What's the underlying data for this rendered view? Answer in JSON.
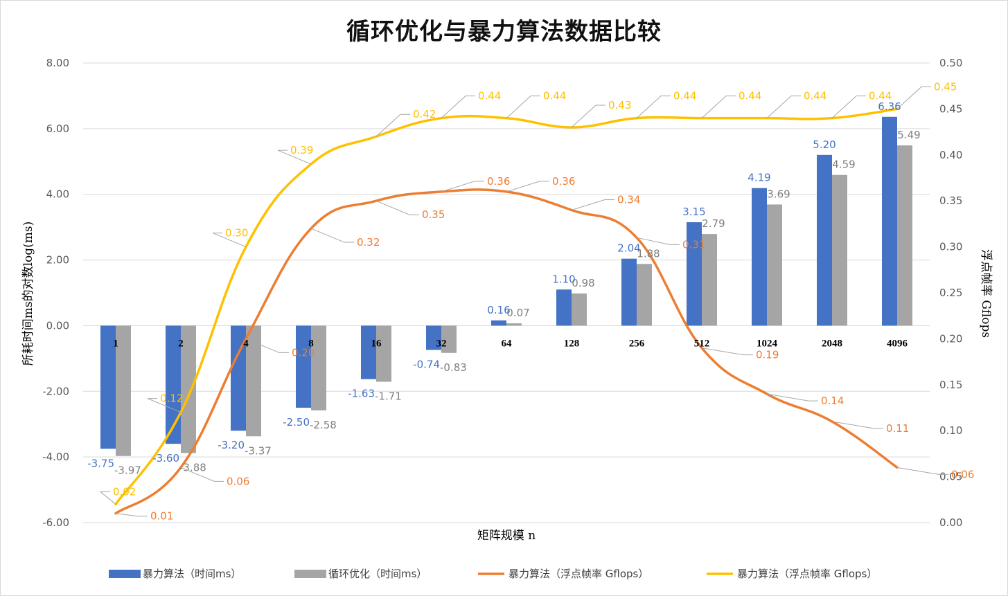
{
  "chart_data": {
    "type": "bar",
    "title": "循环优化与暴力算法数据比较",
    "xlabel": "矩阵规模 n",
    "ylabel": "所耗时间ms的对数log(ms)",
    "y2label": "浮点帧率 Gflops",
    "ylim": [
      -6,
      8
    ],
    "y2lim": [
      0,
      0.5
    ],
    "yticks": [
      "-6.00",
      "-4.00",
      "-2.00",
      "0.00",
      "2.00",
      "4.00",
      "6.00",
      "8.00"
    ],
    "y2ticks": [
      "0.00",
      "0.05",
      "0.10",
      "0.15",
      "0.20",
      "0.25",
      "0.30",
      "0.35",
      "0.40",
      "0.45",
      "0.50"
    ],
    "categories": [
      "1",
      "2",
      "4",
      "8",
      "16",
      "32",
      "64",
      "128",
      "256",
      "512",
      "1024",
      "2048",
      "4096"
    ],
    "series": [
      {
        "name": "暴力算法（时间ms）",
        "kind": "bar",
        "axis": "left",
        "color": "#4472c4",
        "values": [
          -3.75,
          -3.6,
          -3.2,
          -2.5,
          -1.63,
          -0.74,
          0.16,
          1.1,
          2.04,
          3.15,
          4.19,
          5.2,
          6.36
        ],
        "labels": [
          "-3.75",
          "-3.60",
          "-3.20",
          "-2.50",
          "-1.63",
          "-0.74",
          "0.16",
          "1.10",
          "2.04",
          "3.15",
          "4.19",
          "5.20",
          "6.36"
        ]
      },
      {
        "name": "循环优化（时间ms）",
        "kind": "bar",
        "axis": "left",
        "color": "#a5a5a5",
        "values": [
          -3.97,
          -3.88,
          -3.37,
          -2.58,
          -1.71,
          -0.83,
          0.07,
          0.98,
          1.88,
          2.79,
          3.69,
          4.59,
          5.49
        ],
        "labels": [
          "-3.97",
          "-3.88",
          "-3.37",
          "-2.58",
          "-1.71",
          "-0.83",
          "0.07",
          "0.98",
          "1.88",
          "2.79",
          "3.69",
          "4.59",
          "5.49"
        ]
      },
      {
        "name": "暴力算法（浮点帧率 Gflops）",
        "kind": "line",
        "axis": "right",
        "color": "#ed7d31",
        "values": [
          0.01,
          0.06,
          0.2,
          0.32,
          0.35,
          0.36,
          0.36,
          0.34,
          0.31,
          0.19,
          0.14,
          0.11,
          0.06
        ],
        "labels": [
          "0.01",
          "0.06",
          "0.20",
          "0.32",
          "0.35",
          "0.36",
          "0.36",
          "0.34",
          "0.31",
          "0.19",
          "0.14",
          "0.11",
          "0.06"
        ]
      },
      {
        "name": "暴力算法（浮点帧率 Gflops）",
        "kind": "line",
        "axis": "right",
        "color": "#ffc000",
        "values": [
          0.02,
          0.12,
          0.3,
          0.39,
          0.42,
          0.44,
          0.44,
          0.43,
          0.44,
          0.44,
          0.44,
          0.44,
          0.45
        ],
        "labels": [
          "0.02",
          "0.12",
          "0.30",
          "0.39",
          "0.42",
          "0.44",
          "0.44",
          "0.43",
          "0.44",
          "0.44",
          "0.44",
          "0.44",
          "0.45"
        ]
      }
    ],
    "legend": {
      "position": "bottom",
      "items": [
        "暴力算法（时间ms）",
        "循环优化（时间ms）",
        "暴力算法（浮点帧率 Gflops）",
        "暴力算法（浮点帧率 Gflops）"
      ]
    },
    "grid": true
  }
}
